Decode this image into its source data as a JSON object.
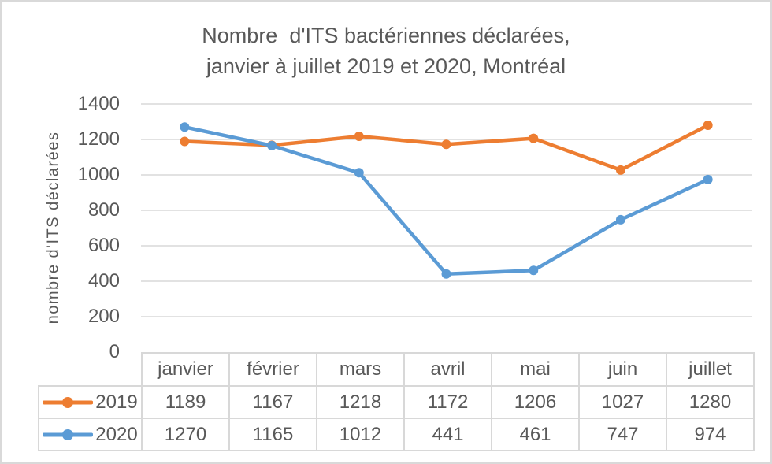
{
  "chart_data": {
    "type": "line",
    "title": "Nombre d'ITS bactériennes déclarées, janvier à juillet 2019 et 2020, Montréal",
    "title_lines": [
      "Nombre  d'ITS bactériennes déclarées,",
      "janvier à juillet 2019 et 2020, Montréal"
    ],
    "ylabel": "nombre d'ITS déclarées",
    "xlabel": "",
    "categories": [
      "janvier",
      "février",
      "mars",
      "avril",
      "mai",
      "juin",
      "juillet"
    ],
    "series": [
      {
        "name": "2019",
        "color": "#ED7D31",
        "marker": "circle",
        "values": [
          1189,
          1167,
          1218,
          1172,
          1206,
          1027,
          1280
        ]
      },
      {
        "name": "2020",
        "color": "#5B9BD5",
        "marker": "circle",
        "values": [
          1270,
          1165,
          1012,
          441,
          461,
          747,
          974
        ]
      }
    ],
    "ylim": [
      0,
      1400
    ],
    "yticks": [
      0,
      200,
      400,
      600,
      800,
      1000,
      1200,
      1400
    ],
    "grid": true,
    "gridline_color": "#d9d9d9",
    "text_color": "#595959",
    "legend_position": "data-table-left"
  }
}
